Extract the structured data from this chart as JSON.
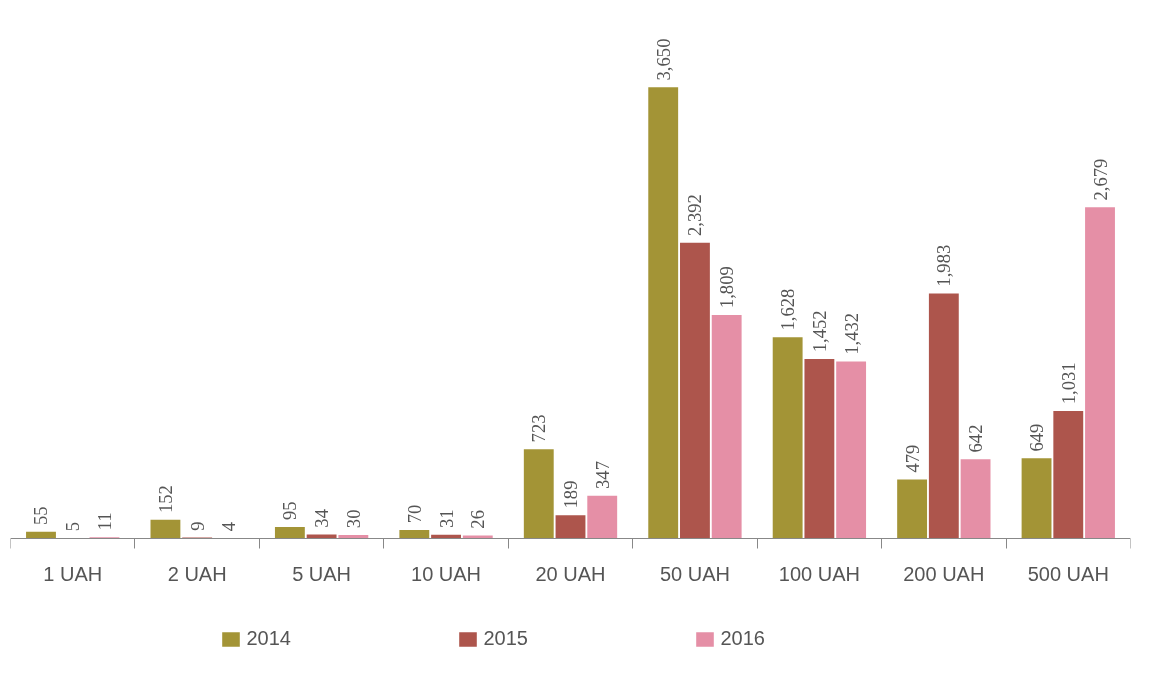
{
  "chart_data": {
    "type": "bar",
    "categories": [
      "1 UAH",
      "2 UAH",
      "5 UAH",
      "10 UAH",
      "20 UAH",
      "50 UAH",
      "100 UAH",
      "200 UAH",
      "500 UAH"
    ],
    "series": [
      {
        "name": "2014",
        "color": "#a39436",
        "values": [
          55,
          152,
          95,
          70,
          723,
          3650,
          1628,
          479,
          649
        ],
        "value_labels": [
          "55",
          "152",
          "95",
          "70",
          "723",
          "3,650",
          "1,628",
          "479",
          "649"
        ]
      },
      {
        "name": "2015",
        "color": "#ad554c",
        "values": [
          5,
          9,
          34,
          31,
          189,
          2392,
          1452,
          1983,
          1031
        ],
        "value_labels": [
          "5",
          "9",
          "34",
          "31",
          "189",
          "2,392",
          "1,452",
          "1,983",
          "1,031"
        ]
      },
      {
        "name": "2016",
        "color": "#e58fa6",
        "values": [
          11,
          4,
          30,
          26,
          347,
          1809,
          1432,
          642,
          2679
        ],
        "value_labels": [
          "11",
          "4",
          "30",
          "26",
          "347",
          "1,809",
          "1,432",
          "642",
          "2,679"
        ]
      }
    ],
    "data_labels": true,
    "legend": "bottom",
    "grid": false
  }
}
